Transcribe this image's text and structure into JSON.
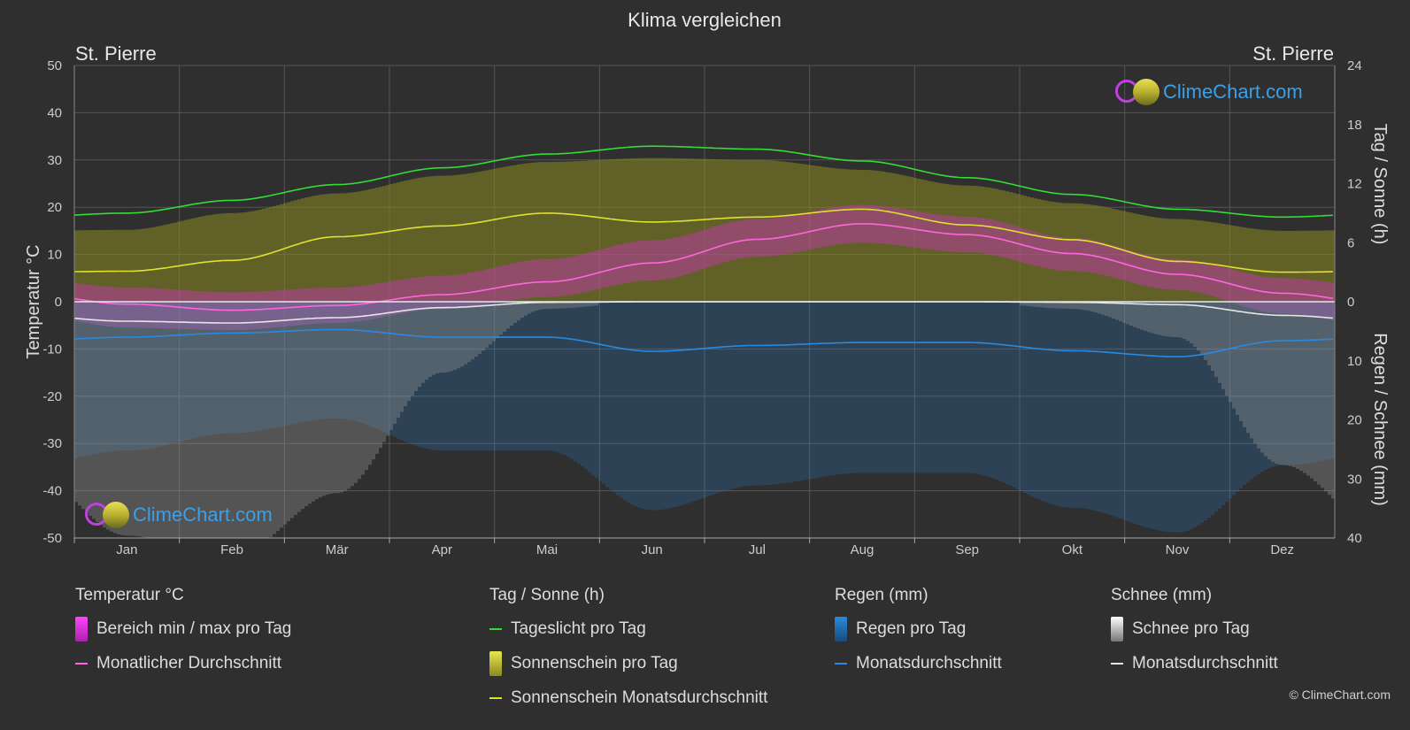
{
  "title": "Klima vergleichen",
  "location_left": "St. Pierre",
  "location_right": "St. Pierre",
  "axis": {
    "left_label": "Temperatur °C",
    "right_top_label": "Tag / Sonne (h)",
    "right_bottom_label": "Regen / Schnee (mm)",
    "left_ticks": [
      "50",
      "40",
      "30",
      "20",
      "10",
      "0",
      "-10",
      "-20",
      "-30",
      "-40",
      "-50"
    ],
    "right_top_ticks": [
      "24",
      "18",
      "12",
      "6",
      "0"
    ],
    "right_bottom_ticks": [
      "10",
      "20",
      "30",
      "40"
    ]
  },
  "logo_text": "ClimeChart.com",
  "copyright": "© ClimeChart.com",
  "legend": {
    "temp": {
      "header": "Temperatur °C",
      "range": "Bereich min / max pro Tag",
      "avg": "Monatlicher Durchschnitt"
    },
    "sun": {
      "header": "Tag / Sonne (h)",
      "daylight": "Tageslicht pro Tag",
      "sunshine": "Sonnenschein pro Tag",
      "sun_avg": "Sonnenschein Monatsdurchschnitt"
    },
    "rain": {
      "header": "Regen (mm)",
      "rain_day": "Regen pro Tag",
      "rain_avg": "Monatsdurchschnitt"
    },
    "snow": {
      "header": "Schnee (mm)",
      "snow_day": "Schnee pro Tag",
      "snow_avg": "Monatsdurchschnitt"
    }
  },
  "colors": {
    "background": "#2f2f2f",
    "grid": "#555555",
    "daylight": "#33dd33",
    "sunshine_avg": "#e0e030",
    "sunshine_fill": "#8a8a20",
    "temp_avg": "#ff66dd",
    "temp_range": "#cc33bb",
    "rain": "#2a8ae0",
    "snow": "#e6e6e6"
  },
  "chart_data": {
    "type": "line",
    "months": [
      "Jan",
      "Feb",
      "Mär",
      "Apr",
      "Mai",
      "Jun",
      "Jul",
      "Aug",
      "Sep",
      "Okt",
      "Nov",
      "Dez"
    ],
    "temp_ylim": [
      -50,
      50
    ],
    "hours_ylim": [
      0,
      24
    ],
    "precip_ylim": [
      0,
      40
    ],
    "series": [
      {
        "name": "Tageslicht pro Tag",
        "unit": "h",
        "values": [
          9.0,
          10.3,
          11.9,
          13.6,
          15.0,
          15.8,
          15.5,
          14.3,
          12.6,
          10.9,
          9.4,
          8.6
        ]
      },
      {
        "name": "Sonnenschein Monatsdurchschnitt",
        "unit": "h",
        "values": [
          3.1,
          4.2,
          6.6,
          7.7,
          9.0,
          8.1,
          8.6,
          9.4,
          7.8,
          6.3,
          4.1,
          3.0
        ]
      },
      {
        "name": "Sonnenschein pro Tag (Obergrenze)",
        "unit": "h",
        "values": [
          7.3,
          9.0,
          11.0,
          12.8,
          14.2,
          14.6,
          14.4,
          13.4,
          11.8,
          10.0,
          8.4,
          7.2
        ]
      },
      {
        "name": "Monatlicher Durchschnitt",
        "unit": "°C",
        "values": [
          -0.5,
          -1.8,
          -0.8,
          1.5,
          4.2,
          8.2,
          13.2,
          16.5,
          14.2,
          10.2,
          5.8,
          1.8
        ]
      },
      {
        "name": "Bereich max pro Tag",
        "unit": "°C",
        "values": [
          3.0,
          2.0,
          3.0,
          5.5,
          9.0,
          13.0,
          17.5,
          20.5,
          18.0,
          13.5,
          9.0,
          5.0
        ]
      },
      {
        "name": "Bereich min pro Tag",
        "unit": "°C",
        "values": [
          -5.5,
          -6.0,
          -4.5,
          -1.5,
          1.0,
          4.5,
          9.5,
          12.5,
          10.5,
          6.5,
          2.5,
          -2.5
        ]
      },
      {
        "name": "Regen Monatsdurchschnitt",
        "unit": "mm",
        "values": [
          6.0,
          5.3,
          4.7,
          6.0,
          6.0,
          8.4,
          7.4,
          6.9,
          6.9,
          8.3,
          9.3,
          6.6
        ]
      },
      {
        "name": "Schnee Monatsdurchschnitt",
        "unit": "mm",
        "values": [
          3.3,
          3.6,
          2.7,
          1.0,
          0.1,
          0.0,
          0.0,
          0.0,
          0.0,
          0.1,
          0.5,
          2.3
        ]
      }
    ]
  }
}
